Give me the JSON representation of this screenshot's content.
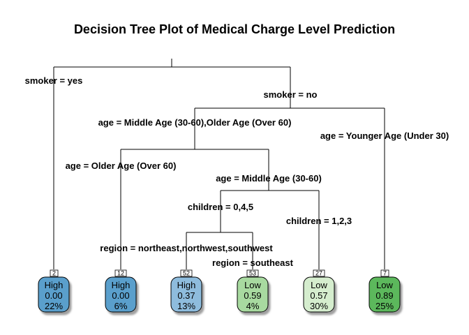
{
  "title": "Decision Tree Plot of Medical Charge Level Prediction",
  "splits": {
    "smoker_yes": "smoker = yes",
    "smoker_no": "smoker = no",
    "age_mid_old": "age = Middle Age (30-60),Older Age (Over 60)",
    "age_young": "age = Younger Age (Under 30)",
    "age_old": "age = Older Age (Over 60)",
    "age_mid": "age = Middle Age (30-60)",
    "children_045": "children = 0,4,5",
    "children_123": "children = 1,2,3",
    "region_nnw": "region = northeast,northwest,southwest",
    "region_se": "region = southeast"
  },
  "leaves": [
    {
      "id": "2",
      "class": "High",
      "prob": "0.00",
      "pct": "22%",
      "color": "#5A9FCC"
    },
    {
      "id": "12",
      "class": "High",
      "prob": "0.00",
      "pct": "6%",
      "color": "#5A9FCC"
    },
    {
      "id": "52",
      "class": "High",
      "prob": "0.37",
      "pct": "13%",
      "color": "#8EBCDD"
    },
    {
      "id": "53",
      "class": "Low",
      "prob": "0.59",
      "pct": "4%",
      "color": "#A8DAA0"
    },
    {
      "id": "27",
      "class": "Low",
      "prob": "0.57",
      "pct": "30%",
      "color": "#D5EDCE"
    },
    {
      "id": "7",
      "class": "Low",
      "prob": "0.89",
      "pct": "25%",
      "color": "#5CB85C"
    }
  ]
}
